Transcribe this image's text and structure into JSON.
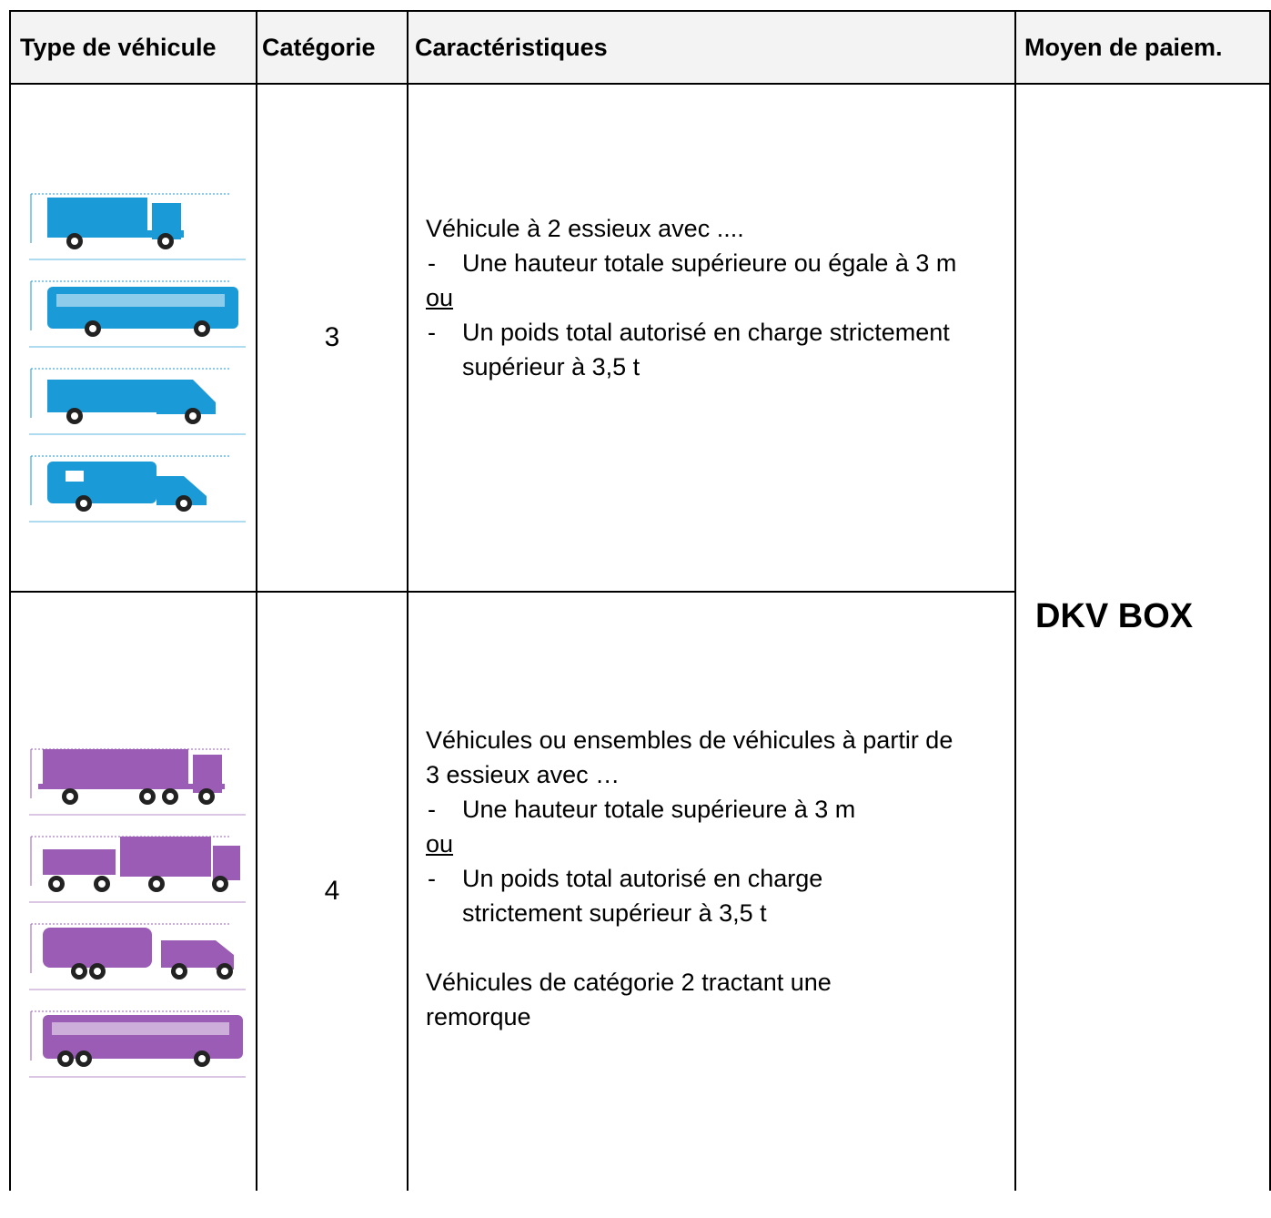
{
  "table": {
    "header": [
      "Type de véhicule",
      "Catégorie",
      "Caractéristiques",
      "Moyen de paiem."
    ],
    "rows": [
      {
        "category": "3",
        "intro": "Véhicule à 2 essieux avec ....",
        "item_1": "Une hauteur totale supérieure ou égale à 3 m",
        "separator": "ou",
        "item_2": "Un poids total autorisé en charge strictement supérieur à 3,5 t"
      },
      {
        "category": "4",
        "intro": "Véhicules ou ensembles de véhicules à partir de 3 essieux avec …",
        "item_1": "Une hauteur totale supérieure à 3 m",
        "separator": "ou",
        "item_2": "Un poids total autorisé en charge strictement supérieur à 3,5 t",
        "outro": "Véhicules de catégorie 2 tractant une remorque"
      }
    ],
    "payment": "DKV BOX"
  }
}
